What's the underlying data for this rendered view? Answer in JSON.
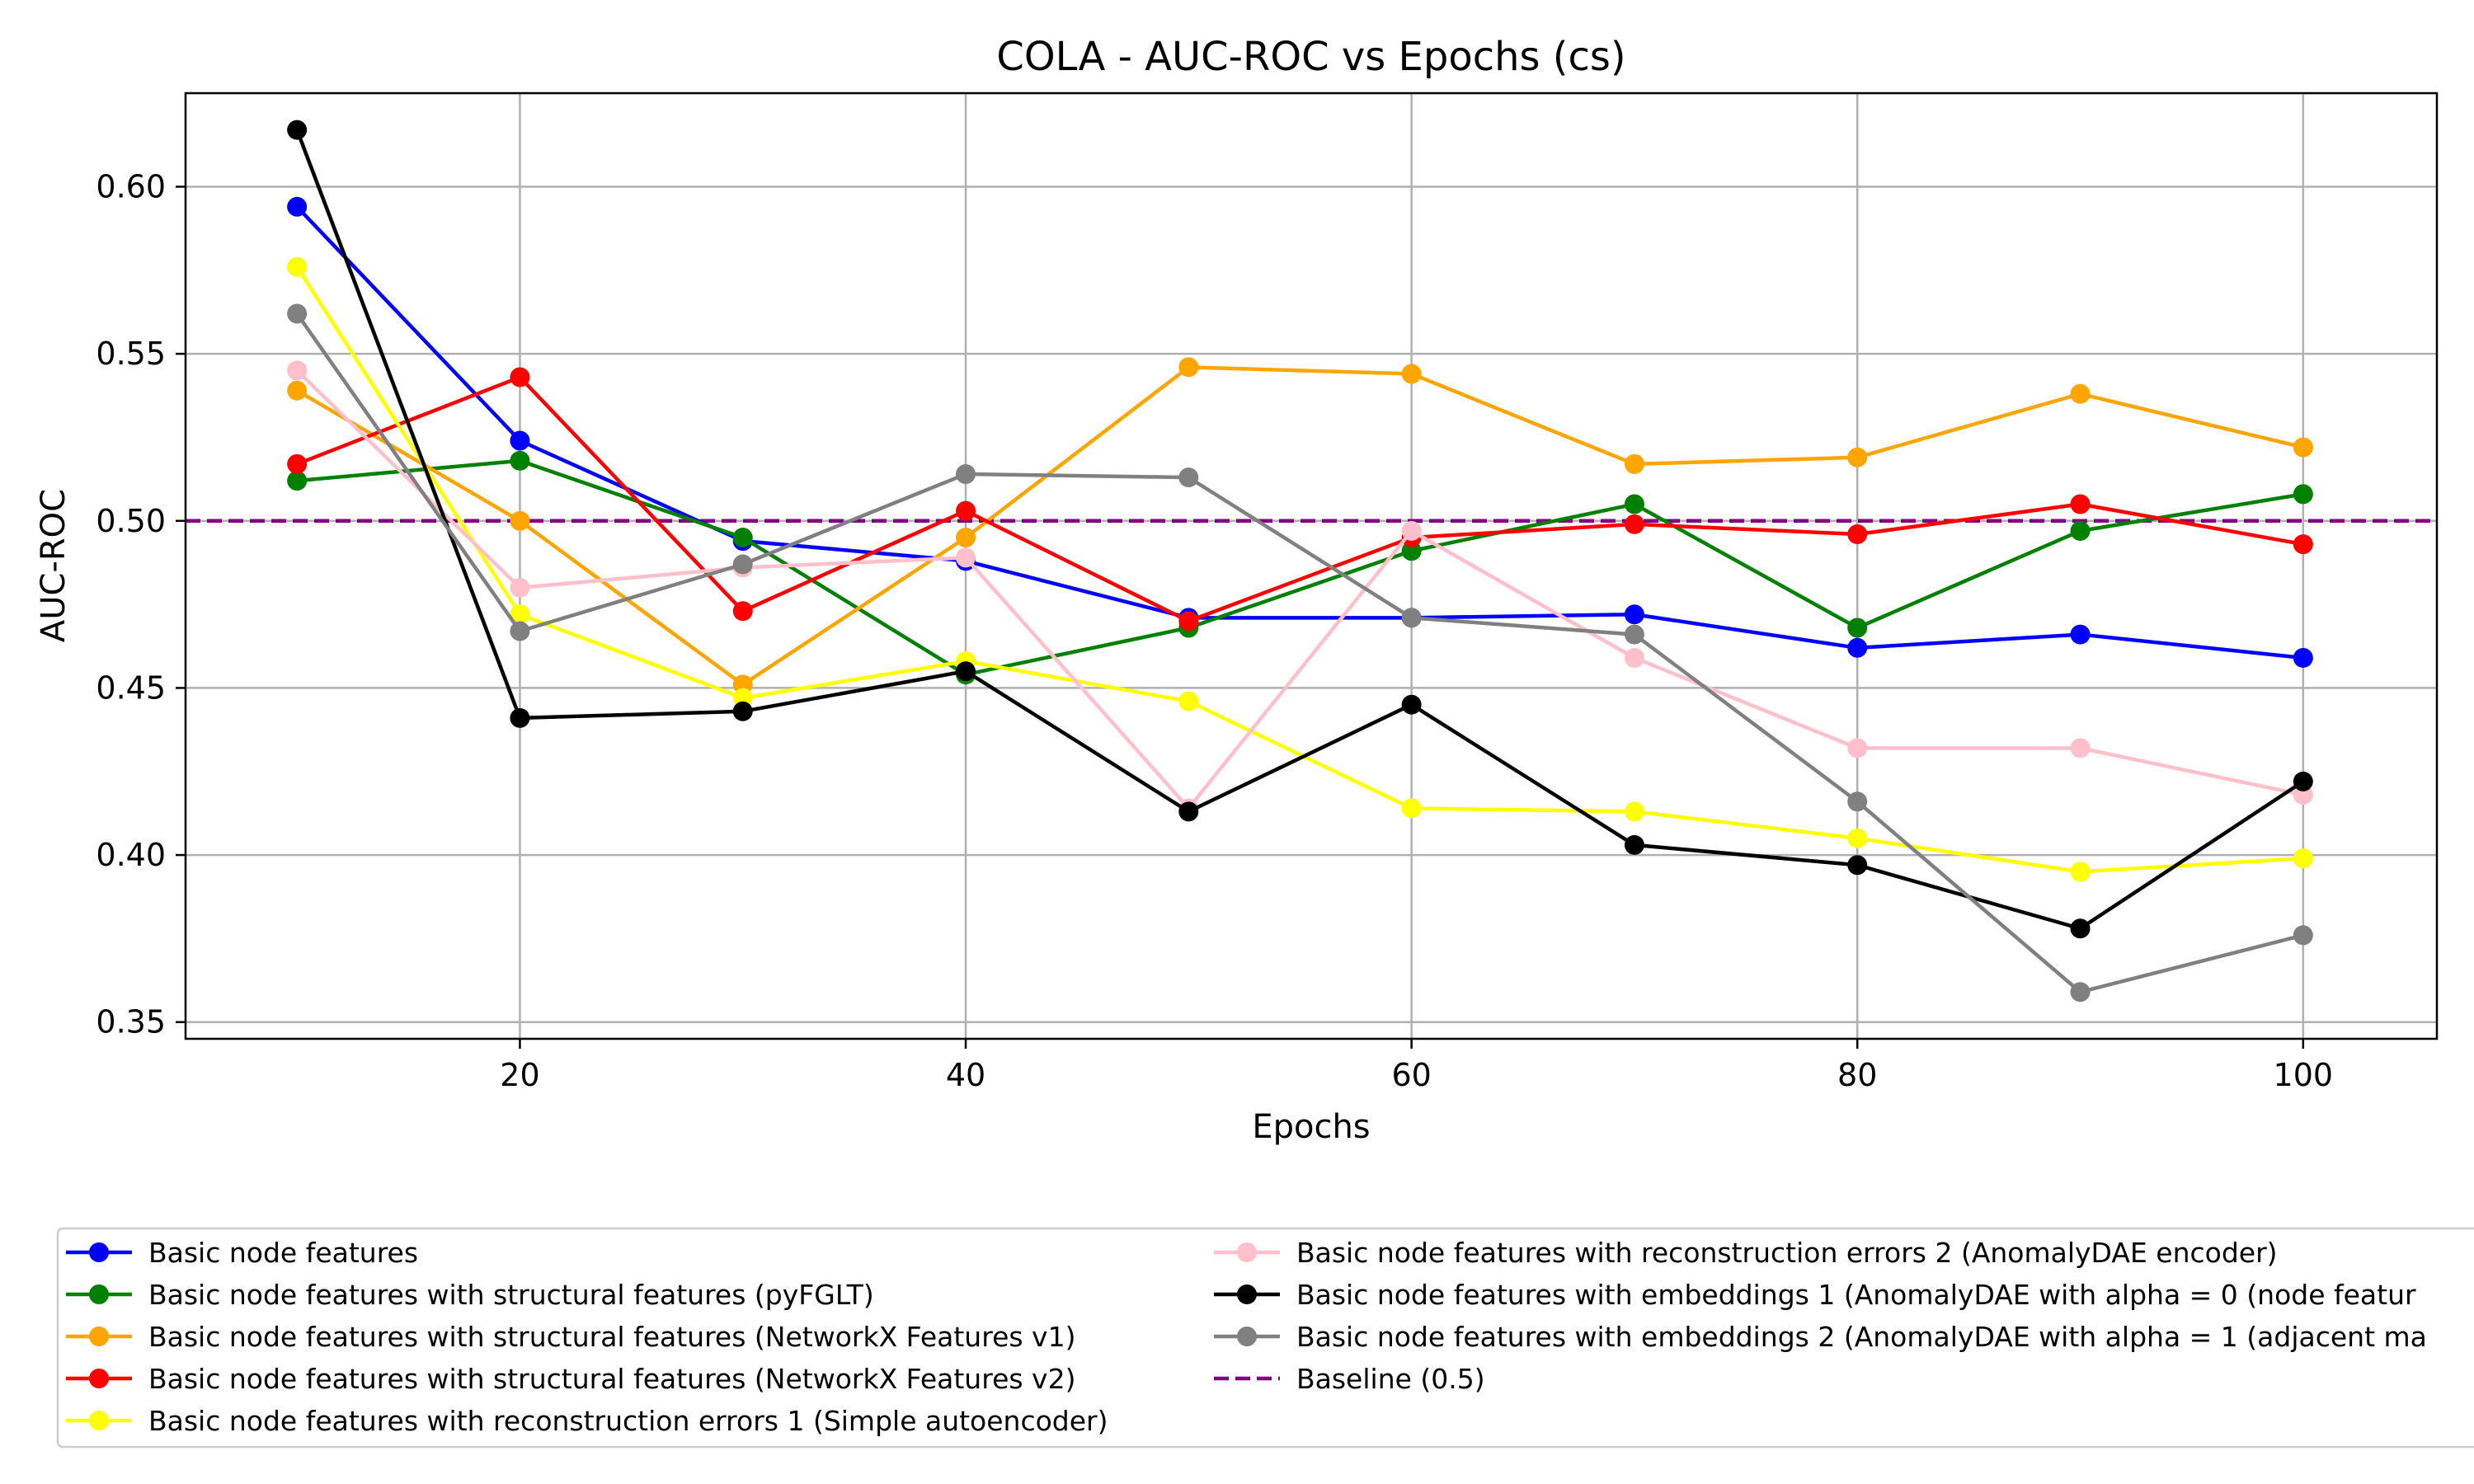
{
  "chart_data": {
    "type": "line",
    "title": "COLA - AUC-ROC vs Epochs (cs)",
    "xlabel": "Epochs",
    "ylabel": "AUC-ROC",
    "x": [
      10,
      20,
      30,
      40,
      50,
      60,
      70,
      80,
      90,
      100
    ],
    "xlim": [
      5,
      106
    ],
    "ylim": [
      0.345,
      0.628
    ],
    "xticks": [
      "20",
      "40",
      "60",
      "80",
      "100"
    ],
    "yticks": [
      "0.35",
      "0.40",
      "0.45",
      "0.50",
      "0.55",
      "0.60"
    ],
    "grid": true,
    "legend_placement": "below",
    "series": [
      {
        "name": "Basic node features",
        "color": "#0000ff",
        "values": [
          0.594,
          0.524,
          0.494,
          0.488,
          0.471,
          0.471,
          0.472,
          0.462,
          0.466,
          0.459
        ]
      },
      {
        "name": "Basic node features with structural features (pyFGLT)",
        "color": "#008000",
        "values": [
          0.512,
          0.518,
          0.495,
          0.454,
          0.468,
          0.491,
          0.505,
          0.468,
          0.497,
          0.508
        ]
      },
      {
        "name": "Basic node features with structural features (NetworkX Features v1)",
        "color": "#ffa500",
        "values": [
          0.539,
          0.5,
          0.451,
          0.495,
          0.546,
          0.544,
          0.517,
          0.519,
          0.538,
          0.522
        ]
      },
      {
        "name": "Basic node features with structural features (NetworkX Features v2)",
        "color": "#ff0000",
        "values": [
          0.517,
          0.543,
          0.473,
          0.503,
          0.47,
          0.495,
          0.499,
          0.496,
          0.505,
          0.493
        ]
      },
      {
        "name": "Basic node features with reconstruction errors 1 (Simple autoencoder)",
        "color": "#ffff00",
        "values": [
          0.576,
          0.472,
          0.447,
          0.458,
          0.446,
          0.414,
          0.413,
          0.405,
          0.395,
          0.399
        ]
      },
      {
        "name": "Basic node features with reconstruction errors 2 (AnomalyDAE encoder)",
        "color": "#ffc0cb",
        "values": [
          0.545,
          0.48,
          0.486,
          0.489,
          0.414,
          0.497,
          0.459,
          0.432,
          0.432,
          0.418
        ]
      },
      {
        "name": "Basic node features with embeddings 1 (AnomalyDAE with alpha = 0 (node featur",
        "color": "#000000",
        "values": [
          0.617,
          0.441,
          0.443,
          0.455,
          0.413,
          0.445,
          0.403,
          0.397,
          0.378,
          0.422
        ]
      },
      {
        "name": "Basic node features with embeddings 2 (AnomalyDAE with alpha = 1 (adjacent ma",
        "color": "#808080",
        "values": [
          0.562,
          0.467,
          0.487,
          0.514,
          0.513,
          0.471,
          0.466,
          0.416,
          0.359,
          0.376
        ]
      }
    ],
    "baseline": {
      "name": "Baseline (0.5)",
      "color": "#800080",
      "value": 0.5
    }
  }
}
